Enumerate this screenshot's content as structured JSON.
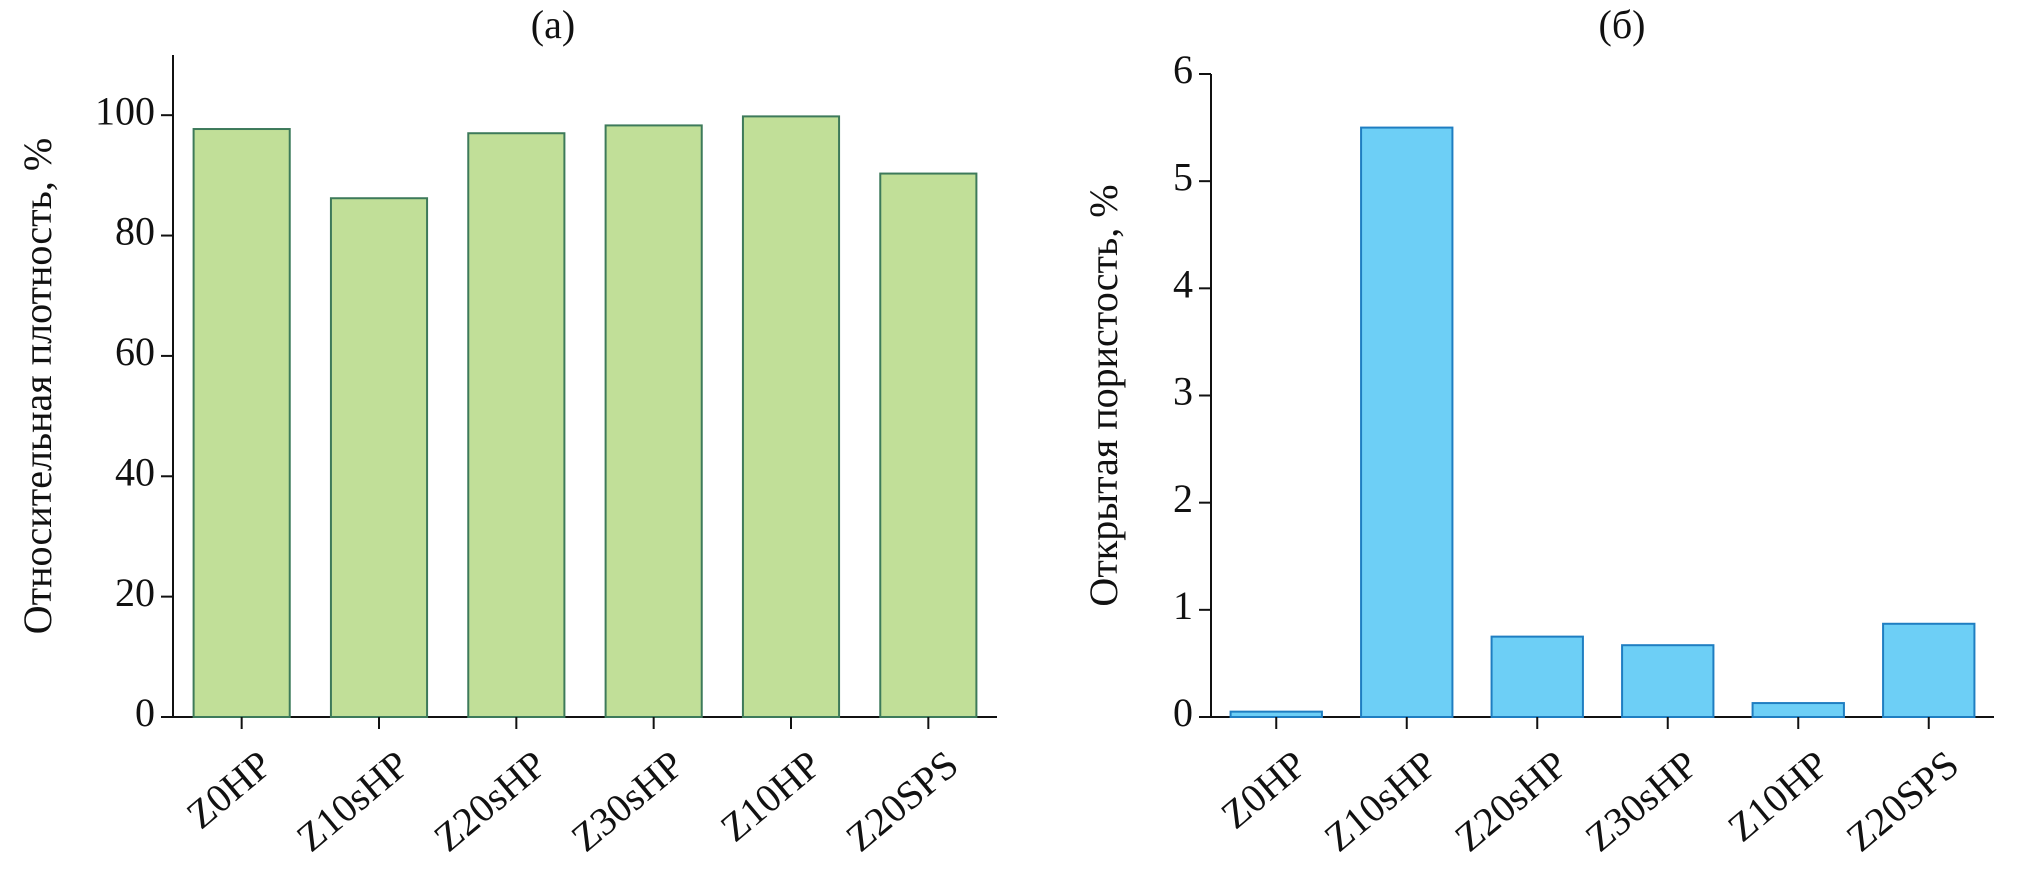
{
  "chart_data": [
    {
      "type": "bar",
      "title": "(a)",
      "y_label": "Относительная плотность, %",
      "categories": [
        "Z0HP",
        "Z10sHP",
        "Z20sHP",
        "Z30sHP",
        "Z10HP",
        "Z20SPS"
      ],
      "values": [
        97.7,
        86.2,
        97.0,
        98.3,
        99.8,
        90.3
      ],
      "color": "#c1df98",
      "edge_color": "#3d7a5a",
      "ylim": [
        0,
        110
      ],
      "yticks": [
        0,
        20,
        40,
        60,
        80,
        100
      ]
    },
    {
      "type": "bar",
      "title": "(б)",
      "y_label": "Открытая пористость, %",
      "categories": [
        "Z0HP",
        "Z10sHP",
        "Z20sHP",
        "Z30sHP",
        "Z10HP",
        "Z20SPS"
      ],
      "values": [
        0.05,
        5.5,
        0.75,
        0.67,
        0.13,
        0.87
      ],
      "color": "#6dcff6",
      "edge_color": "#1f7ec1",
      "ylim": [
        0,
        6
      ],
      "yticks": [
        0,
        1,
        2,
        3,
        4,
        5,
        6
      ]
    }
  ]
}
